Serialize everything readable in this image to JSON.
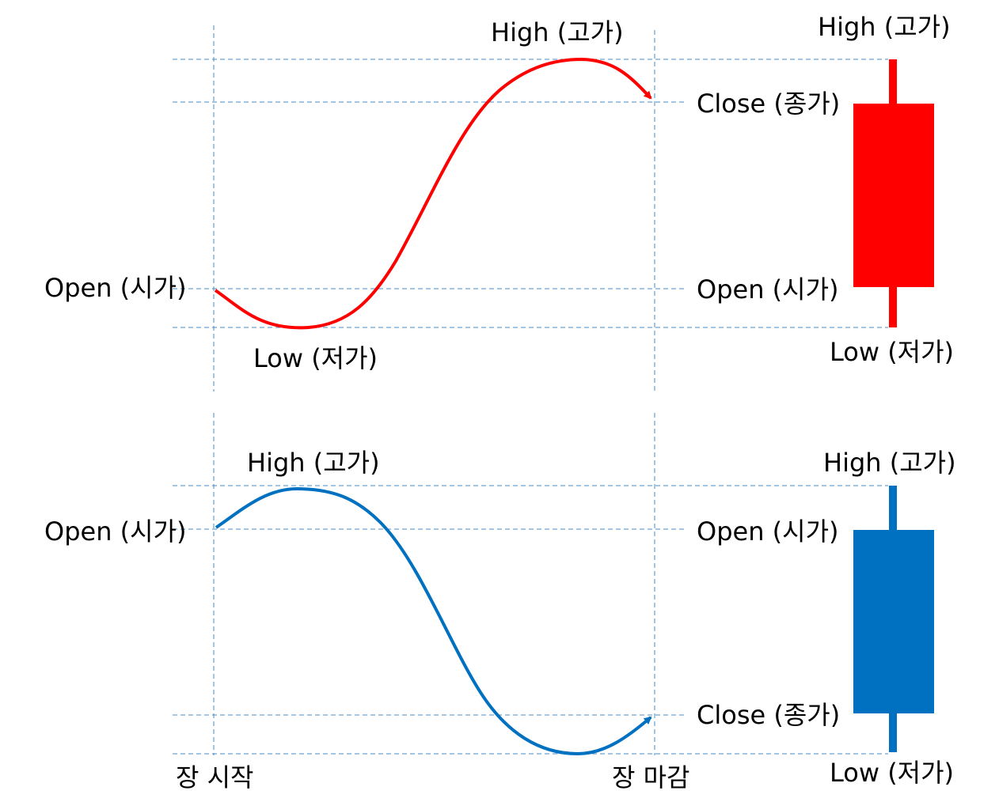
{
  "colors": {
    "bullish": "#ff0000",
    "bearish": "#0070c0",
    "guide": "#4a8cc4",
    "text": "#000000"
  },
  "top_panel": {
    "kind": "bullish",
    "path_labels": {
      "open": "Open (시가)",
      "high": "High (고가)",
      "low": "Low (저가)"
    },
    "candle_labels": {
      "high": "High (고가)",
      "close": "Close (종가)",
      "open": "Open (시가)",
      "low": "Low (저가)"
    }
  },
  "bottom_panel": {
    "kind": "bearish",
    "path_labels": {
      "open": "Open (시가)",
      "high": "High (고가)"
    },
    "candle_labels": {
      "high": "High (고가)",
      "open": "Open (시가)",
      "close": "Close (종가)",
      "low": "Low (저가)"
    }
  },
  "axis_labels": {
    "market_open": "장 시작",
    "market_close": "장 마감"
  }
}
